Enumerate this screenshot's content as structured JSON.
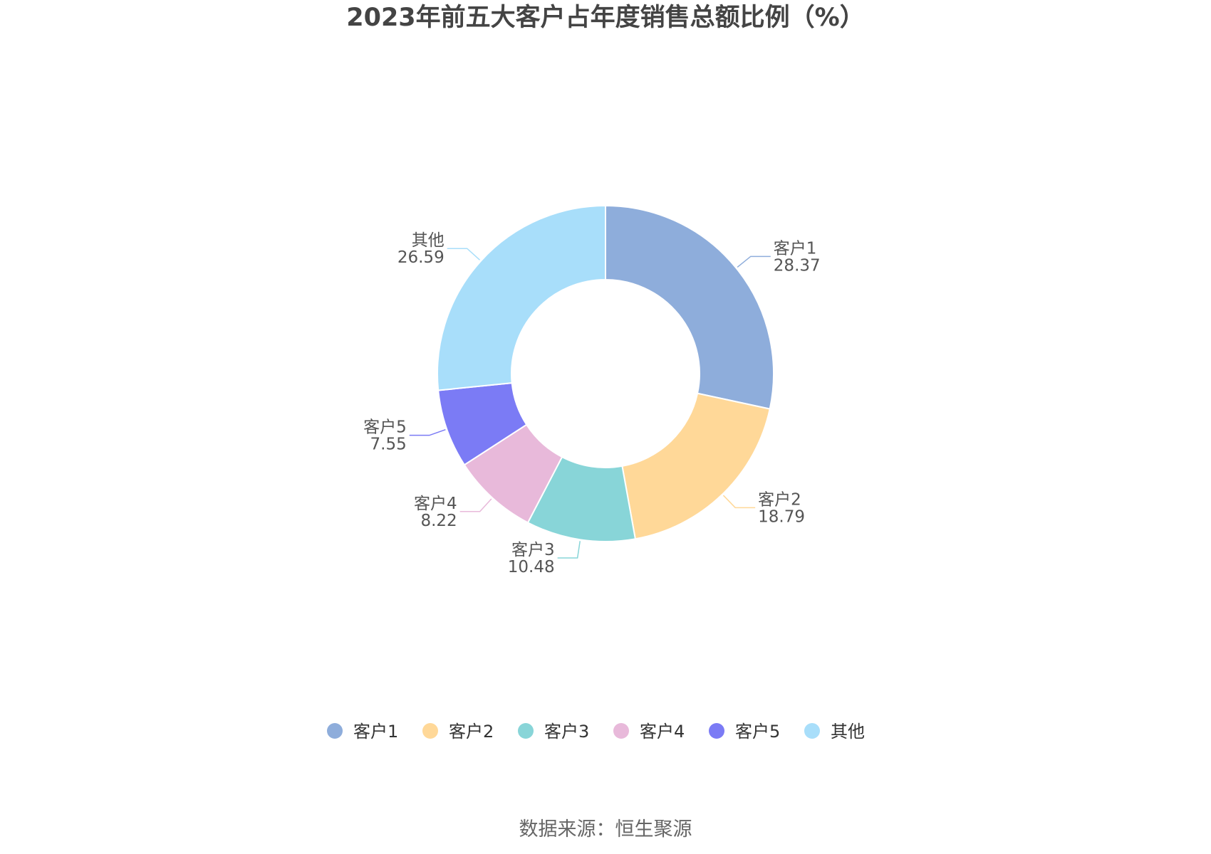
{
  "chart_data": {
    "type": "pie",
    "variant": "donut",
    "title": "2023年前五大客户占年度销售总额比例（%）",
    "categories": [
      "客户1",
      "客户2",
      "客户3",
      "客户4",
      "客户5",
      "其他"
    ],
    "values": [
      28.37,
      18.79,
      10.48,
      8.22,
      7.55,
      26.59
    ],
    "value_labels": [
      "28.37",
      "18.79",
      "10.48",
      "8.22",
      "7.55",
      "26.59"
    ],
    "colors": [
      "#8EADDB",
      "#FFD898",
      "#88D5D8",
      "#E8B9DA",
      "#7B7BF5",
      "#A8DEFA"
    ],
    "legend_position": "bottom",
    "start": "top, clockwise"
  },
  "source": "数据来源：恒生聚源"
}
